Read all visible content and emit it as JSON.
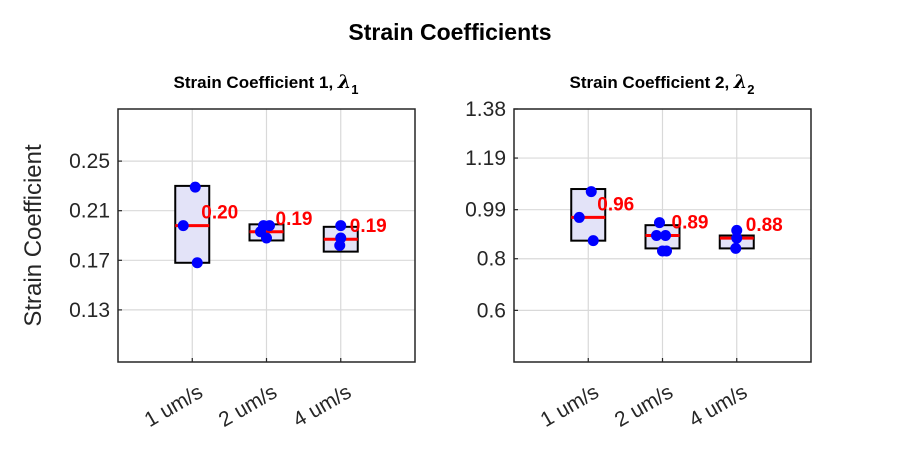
{
  "figure_title": "Strain Coefficients",
  "colors": {
    "box_fill": "#e3e3f8",
    "box_edge": "#000000",
    "median": "#ff0000",
    "points": "#0000ff",
    "label": "#ff0000",
    "grid": "#d9d9d9"
  },
  "chart_data": [
    {
      "type": "box",
      "title": "Strain Coefficient 1, ",
      "title_symbol": "λ",
      "title_subscript": "1",
      "ylabel": "Strain Coefficient",
      "xlabel": "",
      "categories": [
        "1 um/s",
        "2 um/s",
        "4 um/s"
      ],
      "yticks": [
        0.13,
        0.17,
        0.21,
        0.25
      ],
      "ytick_labels": [
        "0.13",
        "0.17",
        "0.21",
        "0.25"
      ],
      "ylim": [
        0.088,
        0.292
      ],
      "grid": true,
      "groups": [
        {
          "category": "1 um/s",
          "points": [
            0.229,
            0.198,
            0.168
          ],
          "box_low": 0.168,
          "box_high": 0.23,
          "median": 0.198,
          "median_label": "0.20"
        },
        {
          "category": "2 um/s",
          "points": [
            0.198,
            0.198,
            0.193,
            0.188
          ],
          "box_low": 0.186,
          "box_high": 0.199,
          "median": 0.193,
          "median_label": "0.19"
        },
        {
          "category": "4 um/s",
          "points": [
            0.198,
            0.188,
            0.182
          ],
          "box_low": 0.177,
          "box_high": 0.197,
          "median": 0.187,
          "median_label": "0.19"
        }
      ]
    },
    {
      "type": "box",
      "title": "Strain Coefficient 2, ",
      "title_symbol": "λ",
      "title_subscript": "2",
      "ylabel": "",
      "xlabel": "",
      "categories": [
        "1 um/s",
        "2 um/s",
        "4 um/s"
      ],
      "yticks": [
        0.6,
        0.8,
        0.99,
        1.19,
        1.38
      ],
      "ytick_labels": [
        "0.6",
        "0.8",
        "0.99",
        "1.19",
        "1.38"
      ],
      "ylim": [
        0.4,
        1.38
      ],
      "grid": true,
      "groups": [
        {
          "category": "1 um/s",
          "points": [
            1.06,
            0.96,
            0.87
          ],
          "box_low": 0.87,
          "box_high": 1.07,
          "median": 0.96,
          "median_label": "0.96"
        },
        {
          "category": "2 um/s",
          "points": [
            0.94,
            0.89,
            0.89,
            0.83,
            0.83
          ],
          "box_low": 0.84,
          "box_high": 0.93,
          "median": 0.89,
          "median_label": "0.89"
        },
        {
          "category": "4 um/s",
          "points": [
            0.91,
            0.88,
            0.84
          ],
          "box_low": 0.84,
          "box_high": 0.89,
          "median": 0.88,
          "median_label": "0.88"
        }
      ]
    }
  ]
}
